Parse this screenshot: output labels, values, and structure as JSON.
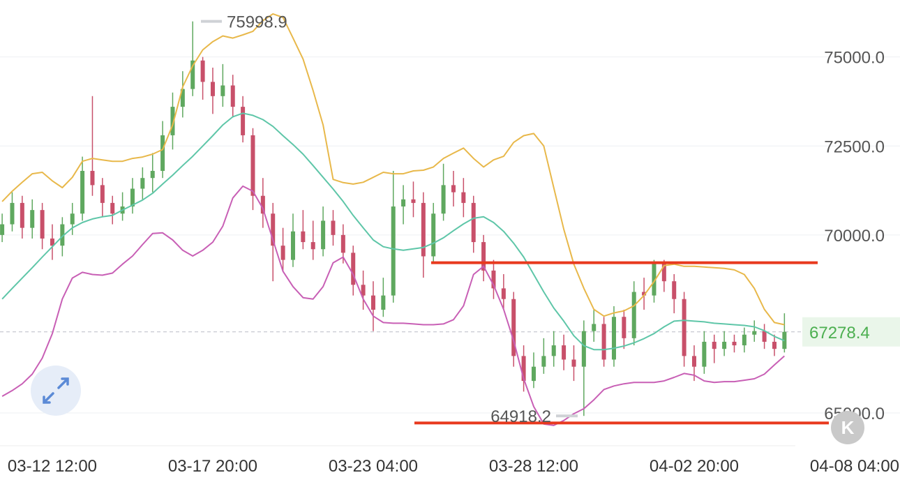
{
  "chart_data": {
    "type": "candlestick",
    "up_color": "#5fa85f",
    "down_color": "#c8506a",
    "ylim": [
      64080,
      76600
    ],
    "yticks": [
      {
        "value": 65000,
        "label": "65000.0"
      },
      {
        "value": 70000,
        "label": "70000.0"
      },
      {
        "value": 72500,
        "label": "72500.0"
      },
      {
        "value": 75000,
        "label": "75000.0"
      }
    ],
    "grid": true,
    "xticks": [
      {
        "value": 5,
        "label": "03-12 12:00"
      },
      {
        "value": 21,
        "label": "03-17 20:00"
      },
      {
        "value": 37,
        "label": "03-23 04:00"
      },
      {
        "value": 53,
        "label": "03-28 12:00"
      },
      {
        "value": 69,
        "label": "04-02 20:00"
      },
      {
        "value": 85,
        "label": "04-08 04:00"
      }
    ],
    "ohlc": [
      [
        70000,
        70600,
        69800,
        70300
      ],
      [
        70300,
        71200,
        70100,
        70900
      ],
      [
        70900,
        71100,
        69900,
        70200
      ],
      [
        70200,
        71000,
        69900,
        70700
      ],
      [
        70700,
        70900,
        69600,
        69900
      ],
      [
        69900,
        70300,
        69300,
        69700
      ],
      [
        69700,
        70500,
        69400,
        70300
      ],
      [
        70300,
        70900,
        70000,
        70600
      ],
      [
        70600,
        72200,
        70400,
        71800
      ],
      [
        71800,
        73900,
        71100,
        71400
      ],
      [
        71400,
        71600,
        70500,
        70900
      ],
      [
        70900,
        71100,
        70300,
        70600
      ],
      [
        70600,
        71200,
        70400,
        70800
      ],
      [
        70800,
        71600,
        70600,
        71300
      ],
      [
        71300,
        71900,
        71000,
        71600
      ],
      [
        71600,
        72300,
        71200,
        71800
      ],
      [
        71800,
        73200,
        71600,
        72800
      ],
      [
        72800,
        74000,
        72400,
        73600
      ],
      [
        73600,
        74600,
        73300,
        74100
      ],
      [
        74100,
        75998.9,
        73900,
        74900
      ],
      [
        74900,
        75000,
        73800,
        74300
      ],
      [
        74300,
        74700,
        73400,
        73900
      ],
      [
        73900,
        74800,
        73600,
        74200
      ],
      [
        74200,
        74500,
        73300,
        73600
      ],
      [
        73600,
        73900,
        72600,
        72800
      ],
      [
        72800,
        73000,
        70700,
        71100
      ],
      [
        71100,
        71600,
        70200,
        70600
      ],
      [
        70600,
        70900,
        68700,
        69700
      ],
      [
        69700,
        70200,
        69000,
        69300
      ],
      [
        69300,
        70600,
        69100,
        70100
      ],
      [
        70100,
        70700,
        69600,
        69800
      ],
      [
        69800,
        70400,
        69300,
        69600
      ],
      [
        69600,
        70800,
        69400,
        70400
      ],
      [
        70400,
        70700,
        69700,
        70000
      ],
      [
        70000,
        70300,
        69200,
        69500
      ],
      [
        69500,
        69700,
        68300,
        68600
      ],
      [
        68600,
        69000,
        67900,
        68300
      ],
      [
        68300,
        68700,
        67300,
        67900
      ],
      [
        67900,
        68800,
        67700,
        68300
      ],
      [
        68300,
        71800,
        68100,
        70800
      ],
      [
        70800,
        71400,
        70300,
        71000
      ],
      [
        71000,
        71500,
        70500,
        70900
      ],
      [
        70900,
        71200,
        68800,
        69400
      ],
      [
        69400,
        70900,
        69200,
        70600
      ],
      [
        70600,
        72000,
        70400,
        71400
      ],
      [
        71400,
        71800,
        70800,
        71200
      ],
      [
        71200,
        71600,
        70500,
        70900
      ],
      [
        70900,
        71100,
        69500,
        69800
      ],
      [
        69800,
        70000,
        68700,
        69000
      ],
      [
        69000,
        69300,
        68200,
        68500
      ],
      [
        68500,
        68900,
        67900,
        68200
      ],
      [
        68200,
        68400,
        66300,
        66600
      ],
      [
        66600,
        66900,
        65600,
        65900
      ],
      [
        65900,
        66700,
        65700,
        66300
      ],
      [
        66300,
        67100,
        66100,
        66600
      ],
      [
        66600,
        67300,
        66300,
        66900
      ],
      [
        66900,
        67200,
        66200,
        66500
      ],
      [
        66500,
        66900,
        65900,
        66300
      ],
      [
        66300,
        67600,
        64918.2,
        67300
      ],
      [
        67300,
        67900,
        67000,
        67500
      ],
      [
        67500,
        67700,
        66300,
        66500
      ],
      [
        66500,
        68000,
        66300,
        67700
      ],
      [
        67700,
        67900,
        66800,
        67100
      ],
      [
        67100,
        68700,
        66900,
        68400
      ],
      [
        68400,
        68800,
        67900,
        68300
      ],
      [
        68300,
        69300,
        68100,
        69200
      ],
      [
        69200,
        69300,
        68400,
        68700
      ],
      [
        68700,
        68900,
        67800,
        68200
      ],
      [
        68200,
        68400,
        66300,
        66600
      ],
      [
        66600,
        66900,
        65900,
        66300
      ],
      [
        66300,
        67300,
        66100,
        67000
      ],
      [
        67000,
        67200,
        66400,
        66800
      ],
      [
        66800,
        67300,
        66600,
        67000
      ],
      [
        67000,
        67200,
        66700,
        66900
      ],
      [
        66900,
        67400,
        66700,
        67200
      ],
      [
        67200,
        67600,
        67000,
        67300
      ],
      [
        67300,
        67500,
        66800,
        67000
      ],
      [
        67000,
        67200,
        66600,
        66800
      ],
      [
        66800,
        67800,
        66700,
        67278.4
      ]
    ],
    "bands": [
      {
        "color": "#e8b84a",
        "values": [
          70940,
          71230,
          71480,
          71720,
          71760,
          71520,
          71330,
          71620,
          72070,
          72150,
          72110,
          72070,
          72070,
          72150,
          72190,
          72270,
          72400,
          73090,
          74160,
          74750,
          75200,
          75430,
          75590,
          75530,
          75620,
          75720,
          76020,
          76210,
          76110,
          75530,
          74940,
          74060,
          73090,
          71560,
          71470,
          71430,
          71480,
          71620,
          71760,
          71720,
          71720,
          71800,
          71820,
          71910,
          72150,
          72300,
          72440,
          72150,
          71910,
          72110,
          72210,
          72600,
          72790,
          72850,
          72500,
          71330,
          70160,
          69180,
          68500,
          67910,
          67720,
          67810,
          67870,
          68010,
          68300,
          68690,
          69140,
          69180,
          69120,
          69120,
          69100,
          69080,
          69060,
          69020,
          68890,
          68500,
          67910,
          67540,
          67480
        ]
      },
      {
        "color": "#5ec6a8",
        "values": [
          68200,
          68500,
          68790,
          69080,
          69380,
          69670,
          69960,
          70200,
          70350,
          70450,
          70510,
          70550,
          70700,
          70840,
          70980,
          71170,
          71430,
          71680,
          71950,
          72210,
          72500,
          72790,
          73090,
          73320,
          73420,
          73360,
          73240,
          73050,
          72790,
          72540,
          72270,
          71950,
          71620,
          71290,
          70940,
          70550,
          70200,
          69860,
          69670,
          69610,
          69570,
          69610,
          69650,
          69770,
          69920,
          70120,
          70310,
          70470,
          70510,
          70350,
          70100,
          69770,
          69380,
          68890,
          68400,
          67950,
          67580,
          67170,
          66890,
          66780,
          66780,
          66820,
          66880,
          66970,
          67090,
          67230,
          67420,
          67580,
          67600,
          67580,
          67560,
          67520,
          67500,
          67480,
          67460,
          67420,
          67310,
          67150,
          67030
        ]
      },
      {
        "color": "#c85fb5",
        "values": [
          65470,
          65630,
          65820,
          66090,
          66540,
          67230,
          68200,
          68790,
          68950,
          68890,
          68870,
          68930,
          69180,
          69410,
          69730,
          70040,
          70060,
          69860,
          69570,
          69410,
          69570,
          69800,
          70250,
          71040,
          71370,
          71230,
          70740,
          69860,
          68980,
          68550,
          68240,
          68200,
          68550,
          69220,
          69380,
          68890,
          68200,
          67720,
          67540,
          67520,
          67520,
          67500,
          67480,
          67480,
          67500,
          67620,
          68010,
          68890,
          69120,
          68590,
          67910,
          67030,
          65960,
          65180,
          64690,
          64650,
          64790,
          64980,
          65120,
          65370,
          65660,
          65760,
          65820,
          65860,
          65860,
          65860,
          65900,
          66000,
          66110,
          66060,
          65900,
          65860,
          65880,
          65880,
          65920,
          65960,
          66090,
          66350,
          66600
        ]
      }
    ],
    "hlines": [
      {
        "value": 69220,
        "color": "#e8391e"
      },
      {
        "value": 64720,
        "color": "#e8391e"
      }
    ],
    "last_price_color": "#4caf50"
  },
  "controls": {
    "kline_button": "K"
  }
}
